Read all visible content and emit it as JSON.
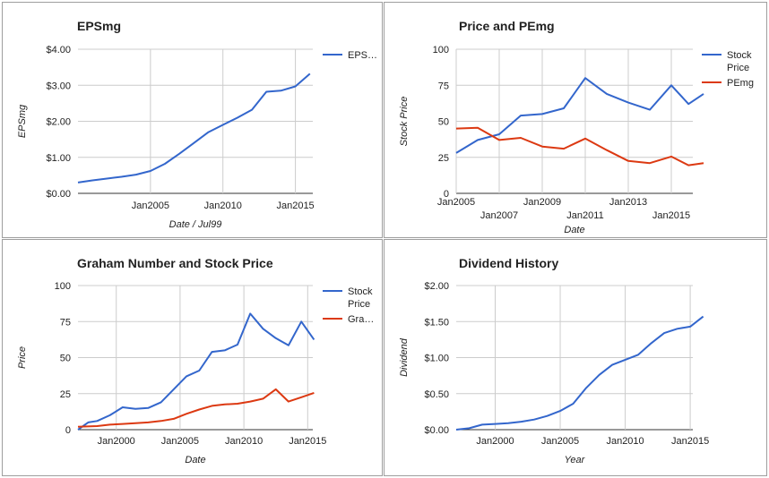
{
  "colors": {
    "blue": "#3366cc",
    "red": "#dc3912",
    "grid": "#cccccc",
    "text": "#222222",
    "axis": "#333333"
  },
  "chart_data": [
    {
      "type": "line",
      "title": "EPSmg",
      "xlabel": "Date / Jul99",
      "ylabel": "EPSmg",
      "x_ticks": [
        "Jan2005",
        "Jan2010",
        "Jan2015"
      ],
      "y_ticks": [
        "$0.00",
        "$1.00",
        "$2.00",
        "$3.00",
        "$4.00"
      ],
      "xlim": [
        2000.0,
        2016.2
      ],
      "ylim": [
        0,
        4
      ],
      "grid": true,
      "legend": "right",
      "series": [
        {
          "name": "EPS…",
          "color": "#3366cc",
          "x": [
            2000.0,
            2001.0,
            2002.0,
            2003.0,
            2004.0,
            2005.0,
            2006.0,
            2007.0,
            2008.0,
            2009.0,
            2010.0,
            2011.0,
            2012.0,
            2013.0,
            2014.0,
            2015.0,
            2016.0
          ],
          "values": [
            0.3,
            0.36,
            0.41,
            0.46,
            0.52,
            0.62,
            0.82,
            1.1,
            1.4,
            1.7,
            1.9,
            2.1,
            2.32,
            2.82,
            2.85,
            2.97,
            3.32
          ]
        }
      ]
    },
    {
      "type": "line",
      "title": "Price and PEmg",
      "xlabel": "Date",
      "ylabel": "Stock Price",
      "x_ticks": [
        "Jan2005",
        "Jan2007",
        "Jan2009",
        "Jan2011",
        "Jan2013",
        "Jan2015"
      ],
      "y_ticks": [
        "0",
        "25",
        "50",
        "75",
        "100"
      ],
      "xlim": [
        2005.0,
        2016.0
      ],
      "ylim": [
        0,
        100
      ],
      "grid": true,
      "legend": "right",
      "series": [
        {
          "name": "Stock Price",
          "color": "#3366cc",
          "x": [
            2005.0,
            2006.0,
            2007.0,
            2008.0,
            2009.0,
            2010.0,
            2011.0,
            2012.0,
            2013.0,
            2014.0,
            2015.0,
            2015.8,
            2016.5
          ],
          "values": [
            28,
            37,
            41,
            54,
            55,
            59,
            80,
            69,
            63,
            58,
            75,
            62,
            69
          ]
        },
        {
          "name": "PEmg",
          "color": "#dc3912",
          "x": [
            2005.0,
            2006.0,
            2007.0,
            2008.0,
            2009.0,
            2010.0,
            2011.0,
            2012.0,
            2013.0,
            2014.0,
            2015.0,
            2015.8,
            2016.5
          ],
          "values": [
            45,
            45.5,
            37,
            38.5,
            32.5,
            31,
            38,
            30,
            22.5,
            21,
            25.5,
            19.5,
            21
          ]
        }
      ]
    },
    {
      "type": "line",
      "title": "Graham Number and Stock Price",
      "xlabel": "Date",
      "ylabel": "Price",
      "x_ticks": [
        "Jan2000",
        "Jan2005",
        "Jan2010",
        "Jan2015"
      ],
      "y_ticks": [
        "0",
        "25",
        "50",
        "75",
        "100"
      ],
      "xlim": [
        1997.0,
        2015.4
      ],
      "ylim": [
        0,
        100
      ],
      "grid": true,
      "legend": "right",
      "series": [
        {
          "name": "Stock Price",
          "color": "#3366cc",
          "x": [
            1997.0,
            1997.8,
            1998.5,
            1999.5,
            2000.5,
            2001.5,
            2002.5,
            2003.5,
            2004.5,
            2005.5,
            2006.5,
            2007.5,
            2008.5,
            2009.5,
            2010.5,
            2011.5,
            2012.5,
            2013.5,
            2014.5,
            2015.5
          ],
          "values": [
            0,
            5,
            6,
            10,
            15.5,
            14.5,
            15,
            19,
            28,
            37,
            41,
            54,
            55,
            59,
            80.5,
            70,
            63.5,
            58.5,
            75,
            62.5
          ]
        },
        {
          "name": "Gra…",
          "color": "#dc3912",
          "x": [
            1997.0,
            1998.5,
            1999.5,
            2000.5,
            2001.5,
            2002.5,
            2003.5,
            2004.5,
            2005.5,
            2006.5,
            2007.5,
            2008.5,
            2009.5,
            2010.5,
            2011.5,
            2012.5,
            2013.5,
            2014.5,
            2015.5
          ],
          "values": [
            2,
            2.5,
            3.5,
            4,
            4.5,
            5,
            6,
            7.5,
            11,
            14,
            16.5,
            17.5,
            18,
            19.5,
            21.5,
            28,
            19.5,
            22.5,
            25.5
          ]
        }
      ]
    },
    {
      "type": "line",
      "title": "Dividend History",
      "xlabel": "Year",
      "ylabel": "Dividend",
      "x_ticks": [
        "Jan2000",
        "Jan2005",
        "Jan2010",
        "Jan2015"
      ],
      "y_ticks": [
        "$0.00",
        "$0.50",
        "$1.00",
        "$1.50",
        "$2.00"
      ],
      "xlim": [
        1997.0,
        2015.2
      ],
      "ylim": [
        0,
        2
      ],
      "grid": true,
      "legend": "none",
      "series": [
        {
          "name": "",
          "color": "#3366cc",
          "x": [
            1997.0,
            1998.0,
            1999.0,
            2000.0,
            2001.0,
            2002.0,
            2003.0,
            2004.0,
            2005.0,
            2006.0,
            2007.0,
            2008.0,
            2009.0,
            2010.0,
            2011.0,
            2012.0,
            2013.0,
            2014.0,
            2015.0,
            2016.0
          ],
          "values": [
            0.0,
            0.02,
            0.07,
            0.08,
            0.09,
            0.11,
            0.14,
            0.19,
            0.26,
            0.36,
            0.58,
            0.76,
            0.9,
            0.97,
            1.04,
            1.2,
            1.34,
            1.4,
            1.43,
            1.57
          ]
        }
      ]
    }
  ]
}
